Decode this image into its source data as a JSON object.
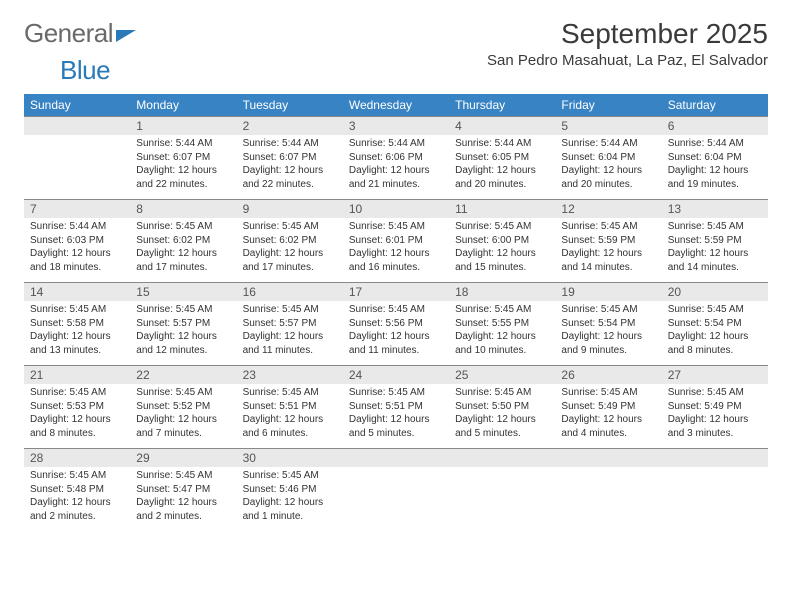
{
  "brand": {
    "part1": "General",
    "part2": "Blue"
  },
  "title": "September 2025",
  "location": "San Pedro Masahuat, La Paz, El Salvador",
  "weekdays": [
    "Sunday",
    "Monday",
    "Tuesday",
    "Wednesday",
    "Thursday",
    "Friday",
    "Saturday"
  ],
  "colors": {
    "header_bg": "#3783c4",
    "daynum_bg": "#e9e9e9",
    "accent": "#2a79b8"
  },
  "weeks": [
    [
      {
        "n": "",
        "sr": "",
        "ss": "",
        "dl": ""
      },
      {
        "n": "1",
        "sr": "Sunrise: 5:44 AM",
        "ss": "Sunset: 6:07 PM",
        "dl": "Daylight: 12 hours and 22 minutes."
      },
      {
        "n": "2",
        "sr": "Sunrise: 5:44 AM",
        "ss": "Sunset: 6:07 PM",
        "dl": "Daylight: 12 hours and 22 minutes."
      },
      {
        "n": "3",
        "sr": "Sunrise: 5:44 AM",
        "ss": "Sunset: 6:06 PM",
        "dl": "Daylight: 12 hours and 21 minutes."
      },
      {
        "n": "4",
        "sr": "Sunrise: 5:44 AM",
        "ss": "Sunset: 6:05 PM",
        "dl": "Daylight: 12 hours and 20 minutes."
      },
      {
        "n": "5",
        "sr": "Sunrise: 5:44 AM",
        "ss": "Sunset: 6:04 PM",
        "dl": "Daylight: 12 hours and 20 minutes."
      },
      {
        "n": "6",
        "sr": "Sunrise: 5:44 AM",
        "ss": "Sunset: 6:04 PM",
        "dl": "Daylight: 12 hours and 19 minutes."
      }
    ],
    [
      {
        "n": "7",
        "sr": "Sunrise: 5:44 AM",
        "ss": "Sunset: 6:03 PM",
        "dl": "Daylight: 12 hours and 18 minutes."
      },
      {
        "n": "8",
        "sr": "Sunrise: 5:45 AM",
        "ss": "Sunset: 6:02 PM",
        "dl": "Daylight: 12 hours and 17 minutes."
      },
      {
        "n": "9",
        "sr": "Sunrise: 5:45 AM",
        "ss": "Sunset: 6:02 PM",
        "dl": "Daylight: 12 hours and 17 minutes."
      },
      {
        "n": "10",
        "sr": "Sunrise: 5:45 AM",
        "ss": "Sunset: 6:01 PM",
        "dl": "Daylight: 12 hours and 16 minutes."
      },
      {
        "n": "11",
        "sr": "Sunrise: 5:45 AM",
        "ss": "Sunset: 6:00 PM",
        "dl": "Daylight: 12 hours and 15 minutes."
      },
      {
        "n": "12",
        "sr": "Sunrise: 5:45 AM",
        "ss": "Sunset: 5:59 PM",
        "dl": "Daylight: 12 hours and 14 minutes."
      },
      {
        "n": "13",
        "sr": "Sunrise: 5:45 AM",
        "ss": "Sunset: 5:59 PM",
        "dl": "Daylight: 12 hours and 14 minutes."
      }
    ],
    [
      {
        "n": "14",
        "sr": "Sunrise: 5:45 AM",
        "ss": "Sunset: 5:58 PM",
        "dl": "Daylight: 12 hours and 13 minutes."
      },
      {
        "n": "15",
        "sr": "Sunrise: 5:45 AM",
        "ss": "Sunset: 5:57 PM",
        "dl": "Daylight: 12 hours and 12 minutes."
      },
      {
        "n": "16",
        "sr": "Sunrise: 5:45 AM",
        "ss": "Sunset: 5:57 PM",
        "dl": "Daylight: 12 hours and 11 minutes."
      },
      {
        "n": "17",
        "sr": "Sunrise: 5:45 AM",
        "ss": "Sunset: 5:56 PM",
        "dl": "Daylight: 12 hours and 11 minutes."
      },
      {
        "n": "18",
        "sr": "Sunrise: 5:45 AM",
        "ss": "Sunset: 5:55 PM",
        "dl": "Daylight: 12 hours and 10 minutes."
      },
      {
        "n": "19",
        "sr": "Sunrise: 5:45 AM",
        "ss": "Sunset: 5:54 PM",
        "dl": "Daylight: 12 hours and 9 minutes."
      },
      {
        "n": "20",
        "sr": "Sunrise: 5:45 AM",
        "ss": "Sunset: 5:54 PM",
        "dl": "Daylight: 12 hours and 8 minutes."
      }
    ],
    [
      {
        "n": "21",
        "sr": "Sunrise: 5:45 AM",
        "ss": "Sunset: 5:53 PM",
        "dl": "Daylight: 12 hours and 8 minutes."
      },
      {
        "n": "22",
        "sr": "Sunrise: 5:45 AM",
        "ss": "Sunset: 5:52 PM",
        "dl": "Daylight: 12 hours and 7 minutes."
      },
      {
        "n": "23",
        "sr": "Sunrise: 5:45 AM",
        "ss": "Sunset: 5:51 PM",
        "dl": "Daylight: 12 hours and 6 minutes."
      },
      {
        "n": "24",
        "sr": "Sunrise: 5:45 AM",
        "ss": "Sunset: 5:51 PM",
        "dl": "Daylight: 12 hours and 5 minutes."
      },
      {
        "n": "25",
        "sr": "Sunrise: 5:45 AM",
        "ss": "Sunset: 5:50 PM",
        "dl": "Daylight: 12 hours and 5 minutes."
      },
      {
        "n": "26",
        "sr": "Sunrise: 5:45 AM",
        "ss": "Sunset: 5:49 PM",
        "dl": "Daylight: 12 hours and 4 minutes."
      },
      {
        "n": "27",
        "sr": "Sunrise: 5:45 AM",
        "ss": "Sunset: 5:49 PM",
        "dl": "Daylight: 12 hours and 3 minutes."
      }
    ],
    [
      {
        "n": "28",
        "sr": "Sunrise: 5:45 AM",
        "ss": "Sunset: 5:48 PM",
        "dl": "Daylight: 12 hours and 2 minutes."
      },
      {
        "n": "29",
        "sr": "Sunrise: 5:45 AM",
        "ss": "Sunset: 5:47 PM",
        "dl": "Daylight: 12 hours and 2 minutes."
      },
      {
        "n": "30",
        "sr": "Sunrise: 5:45 AM",
        "ss": "Sunset: 5:46 PM",
        "dl": "Daylight: 12 hours and 1 minute."
      },
      {
        "n": "",
        "sr": "",
        "ss": "",
        "dl": ""
      },
      {
        "n": "",
        "sr": "",
        "ss": "",
        "dl": ""
      },
      {
        "n": "",
        "sr": "",
        "ss": "",
        "dl": ""
      },
      {
        "n": "",
        "sr": "",
        "ss": "",
        "dl": ""
      }
    ]
  ]
}
